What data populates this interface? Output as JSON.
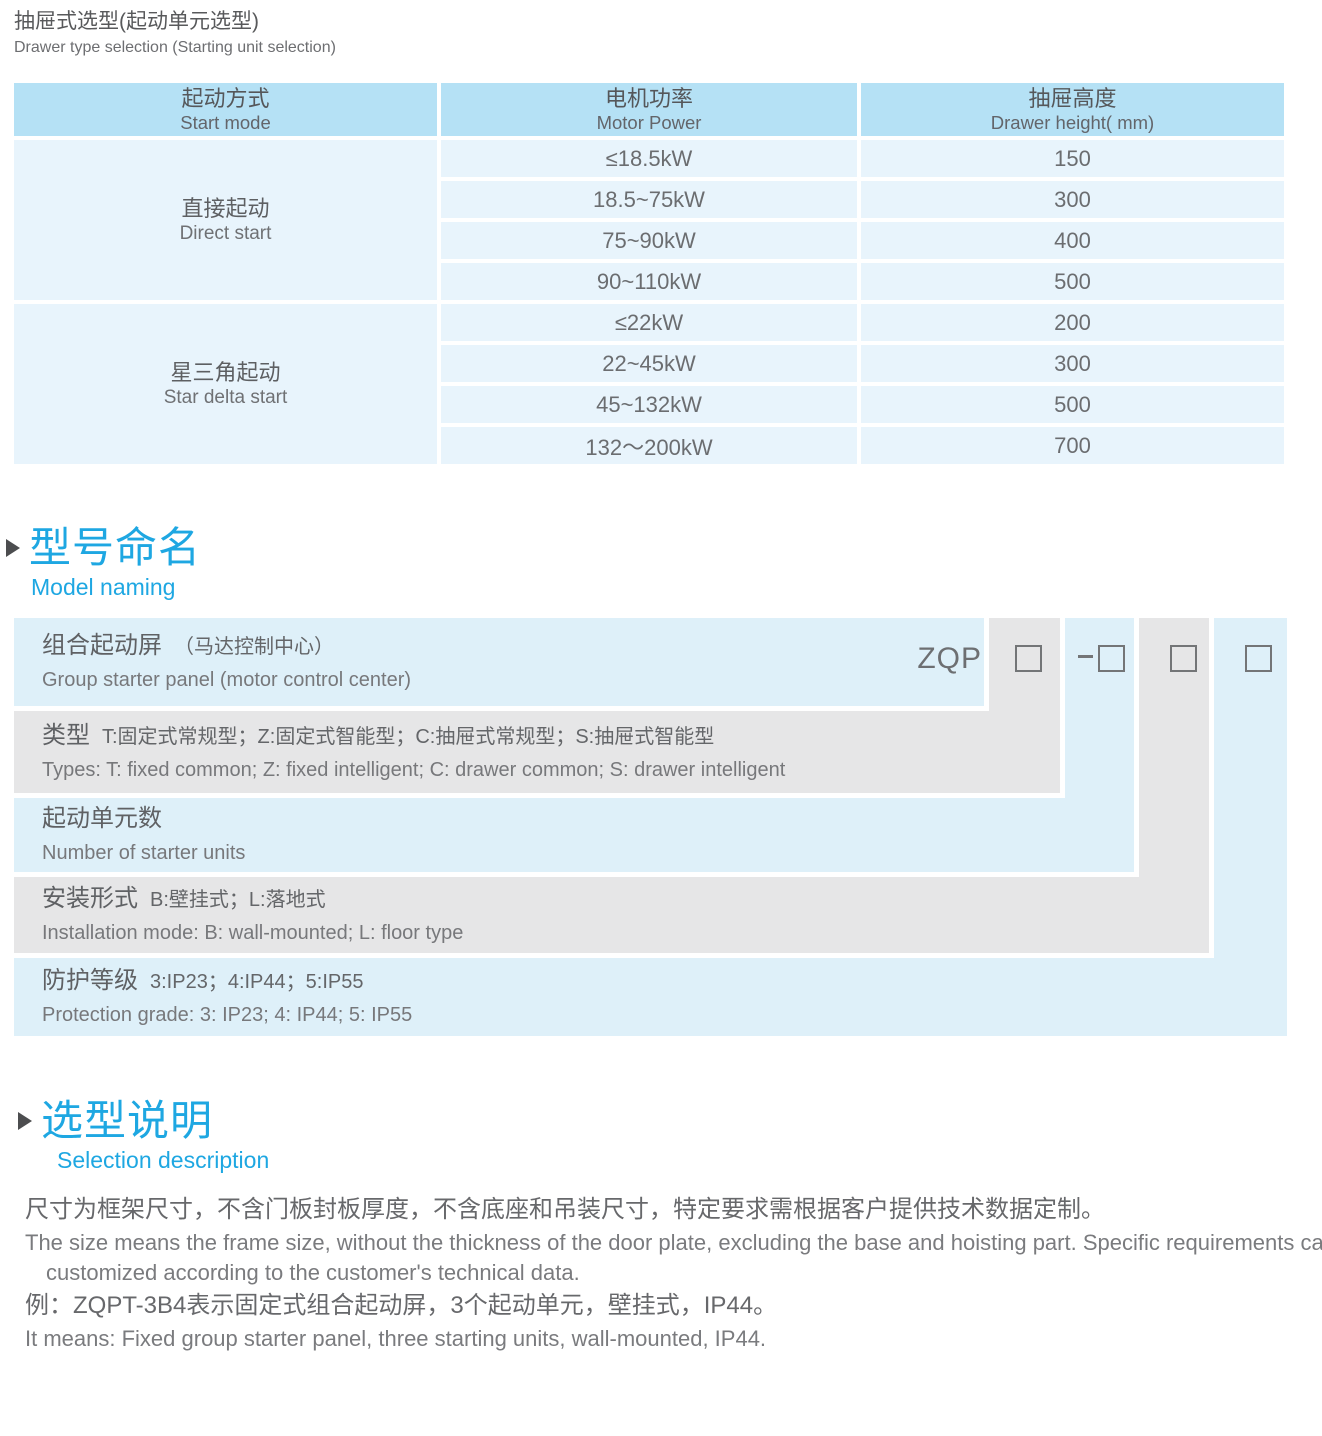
{
  "page": {
    "title_cn": "抽屉式选型(起动单元选型)",
    "title_en": "Drawer type selection (Starting unit selection)"
  },
  "selection_table": {
    "headers": [
      {
        "cn": "起动方式",
        "en": "Start mode"
      },
      {
        "cn": "电机功率",
        "en": "Motor Power"
      },
      {
        "cn": "抽屉高度",
        "en": "Drawer height( mm)"
      }
    ],
    "groups": [
      {
        "mode_cn": "直接起动",
        "mode_en": "Direct start",
        "rows": [
          {
            "power": "≤18.5kW",
            "height": "150"
          },
          {
            "power": "18.5~75kW",
            "height": "300"
          },
          {
            "power": "75~90kW",
            "height": "400"
          },
          {
            "power": "90~110kW",
            "height": "500"
          }
        ]
      },
      {
        "mode_cn": "星三角起动",
        "mode_en": "Star delta start",
        "rows": [
          {
            "power": "≤22kW",
            "height": "200"
          },
          {
            "power": "22~45kW",
            "height": "300"
          },
          {
            "power": "45~132kW",
            "height": "500"
          },
          {
            "power": "132～200kW",
            "height": "700"
          }
        ]
      }
    ]
  },
  "model_naming": {
    "title_cn": "型号命名",
    "title_en": "Model naming",
    "code_prefix": "ZQP",
    "rows": [
      {
        "cn": "组合起动屏",
        "cn_sub": "（马达控制中心）",
        "en": "Group starter panel (motor control center)"
      },
      {
        "cn": "类型",
        "cn_sub": "T:固定式常规型；Z:固定式智能型；C:抽屉式常规型；S:抽屉式智能型",
        "en": "Types: T: fixed common; Z: fixed intelligent; C: drawer common; S: drawer intelligent"
      },
      {
        "cn": "起动单元数",
        "cn_sub": "",
        "en": "Number of starter units"
      },
      {
        "cn": "安装形式",
        "cn_sub": "B:壁挂式；L:落地式",
        "en": "Installation mode: B: wall-mounted; L: floor type"
      },
      {
        "cn": "防护等级",
        "cn_sub": "3:IP23；4:IP44；5:IP55",
        "en": "Protection grade: 3: IP23; 4: IP44; 5: IP55"
      }
    ]
  },
  "selection_description": {
    "title_cn": "选型说明",
    "title_en": "Selection description",
    "lines": [
      "尺寸为框架尺寸，不含门板封板厚度，不含底座和吊装尺寸，特定要求需根据客户提供技术数据定制。",
      "The size means the frame size, without the thickness of the door plate, excluding the base and hoisting part. Specific requirements can be",
      "customized according to the customer's technical data.",
      "例：ZQPT-3B4表示固定式组合起动屏，3个起动单元，壁挂式，IP44。",
      "It means: Fixed group starter panel, three starting units, wall-mounted, IP44."
    ]
  },
  "colors": {
    "accent_blue": "#1ea7e2",
    "table_header_bg": "#b5e1f5",
    "table_cell_bg": "#e8f4fc",
    "band_blue": "#def0f9",
    "band_gray": "#e6e6e7",
    "text_dark": "#58595b",
    "text_mid": "#6d6e71"
  }
}
